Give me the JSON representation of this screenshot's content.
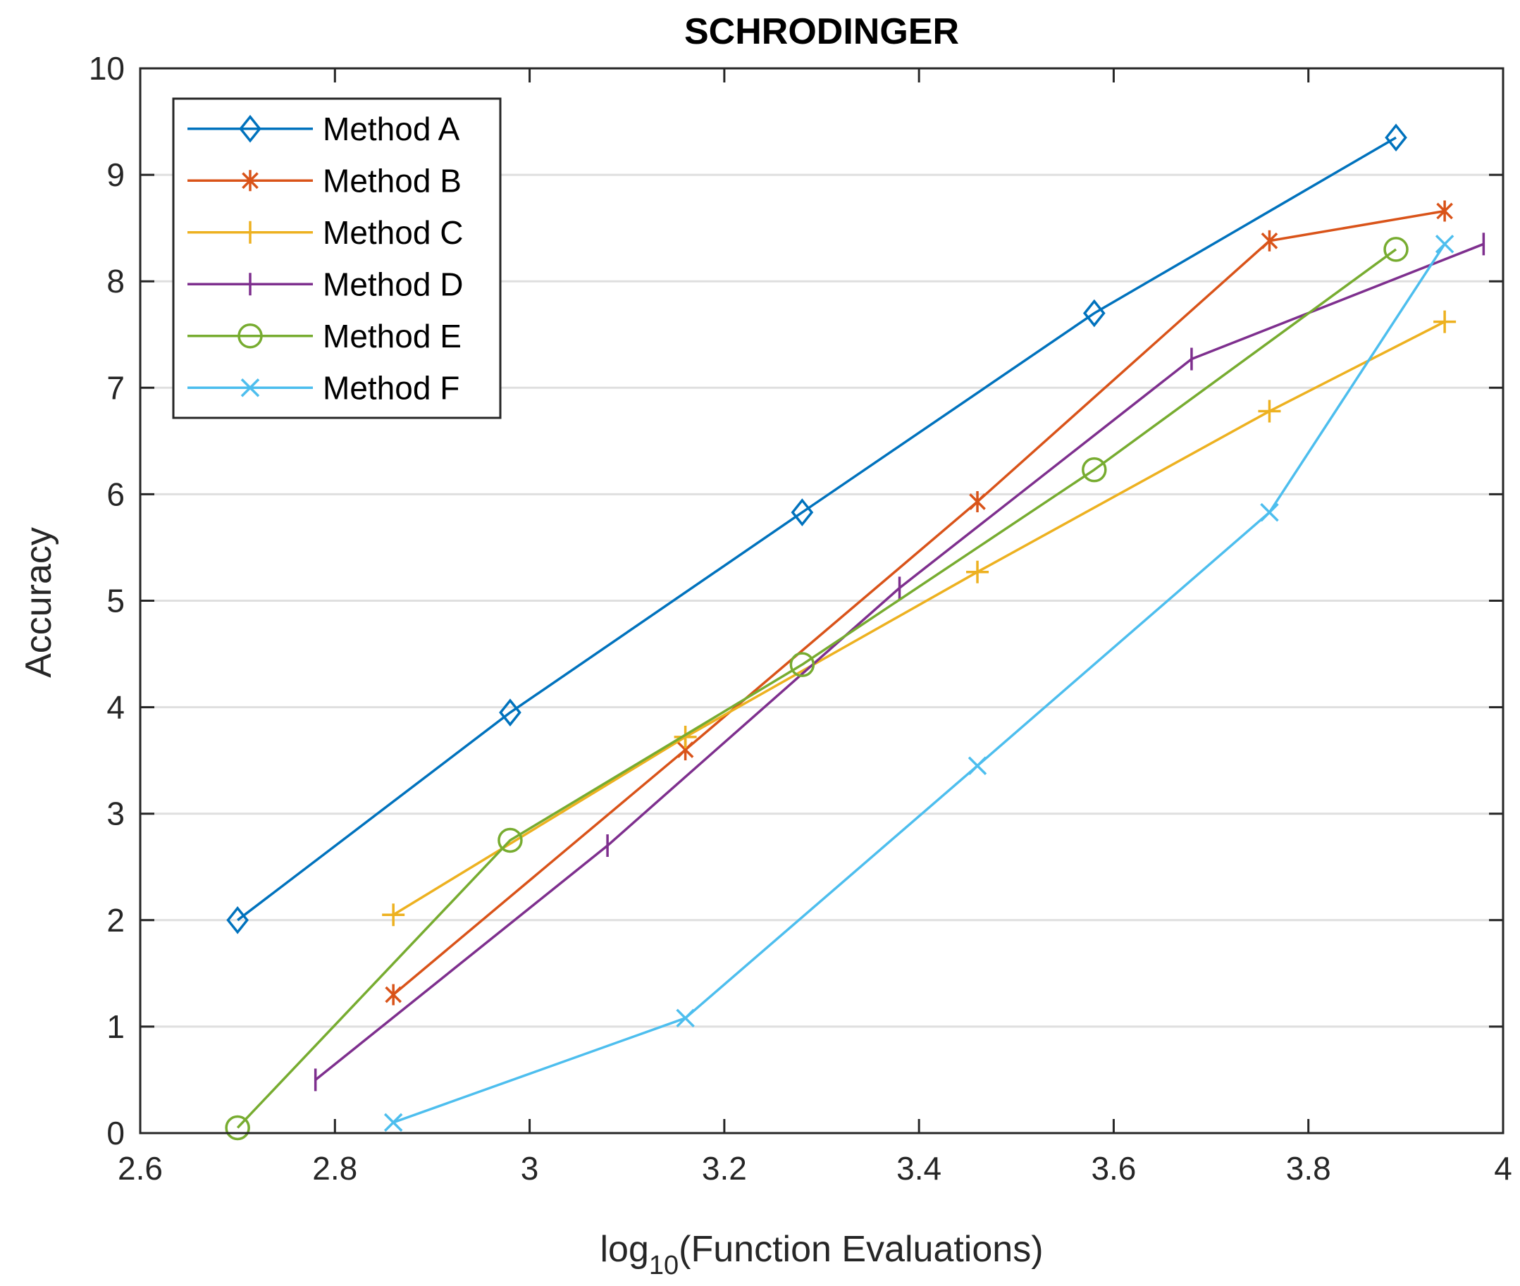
{
  "chart_data": {
    "type": "line",
    "title": "SCHRODINGER",
    "xlabel_main": "log",
    "xlabel_sub": "10",
    "xlabel_rest": "(Function Evaluations)",
    "ylabel": "Accuracy",
    "xlim": [
      2.6,
      4
    ],
    "ylim": [
      0,
      10
    ],
    "xticks": [
      2.6,
      2.8,
      3,
      3.2,
      3.4,
      3.6,
      3.8,
      4
    ],
    "xtick_labels": [
      "2.6",
      "2.8",
      "3",
      "3.2",
      "3.4",
      "3.6",
      "3.8",
      "4"
    ],
    "yticks": [
      0,
      1,
      2,
      3,
      4,
      5,
      6,
      7,
      8,
      9,
      10
    ],
    "ytick_labels": [
      "0",
      "1",
      "2",
      "3",
      "4",
      "5",
      "6",
      "7",
      "8",
      "9",
      "10"
    ],
    "grid": "horizontal",
    "legend_position": "top-left",
    "series": [
      {
        "name": "Method A",
        "color": "#0072BD",
        "marker": "diamond",
        "x": [
          2.7,
          2.98,
          3.28,
          3.58,
          3.89
        ],
        "y": [
          2.0,
          3.95,
          5.83,
          7.7,
          9.35
        ]
      },
      {
        "name": "Method B",
        "color": "#D95319",
        "marker": "asterisk",
        "x": [
          2.86,
          3.16,
          3.46,
          3.76,
          3.94
        ],
        "y": [
          1.3,
          3.6,
          5.93,
          8.38,
          8.66
        ]
      },
      {
        "name": "Method C",
        "color": "#EDB120",
        "marker": "plus",
        "x": [
          2.86,
          3.16,
          3.46,
          3.76,
          3.94
        ],
        "y": [
          2.05,
          3.72,
          5.27,
          6.78,
          7.62
        ]
      },
      {
        "name": "Method D",
        "color": "#7E2F8E",
        "marker": "vline",
        "x": [
          2.78,
          3.08,
          3.38,
          3.68,
          3.98
        ],
        "y": [
          0.5,
          2.7,
          5.12,
          7.27,
          8.35
        ]
      },
      {
        "name": "Method E",
        "color": "#77AC30",
        "marker": "circle",
        "x": [
          2.7,
          2.98,
          3.28,
          3.58,
          3.89
        ],
        "y": [
          0.05,
          2.75,
          4.4,
          6.23,
          8.3
        ]
      },
      {
        "name": "Method F",
        "color": "#4DBEEE",
        "marker": "x",
        "x": [
          2.86,
          3.16,
          3.46,
          3.76,
          3.94
        ],
        "y": [
          0.1,
          1.08,
          3.45,
          5.83,
          8.35
        ]
      }
    ]
  }
}
